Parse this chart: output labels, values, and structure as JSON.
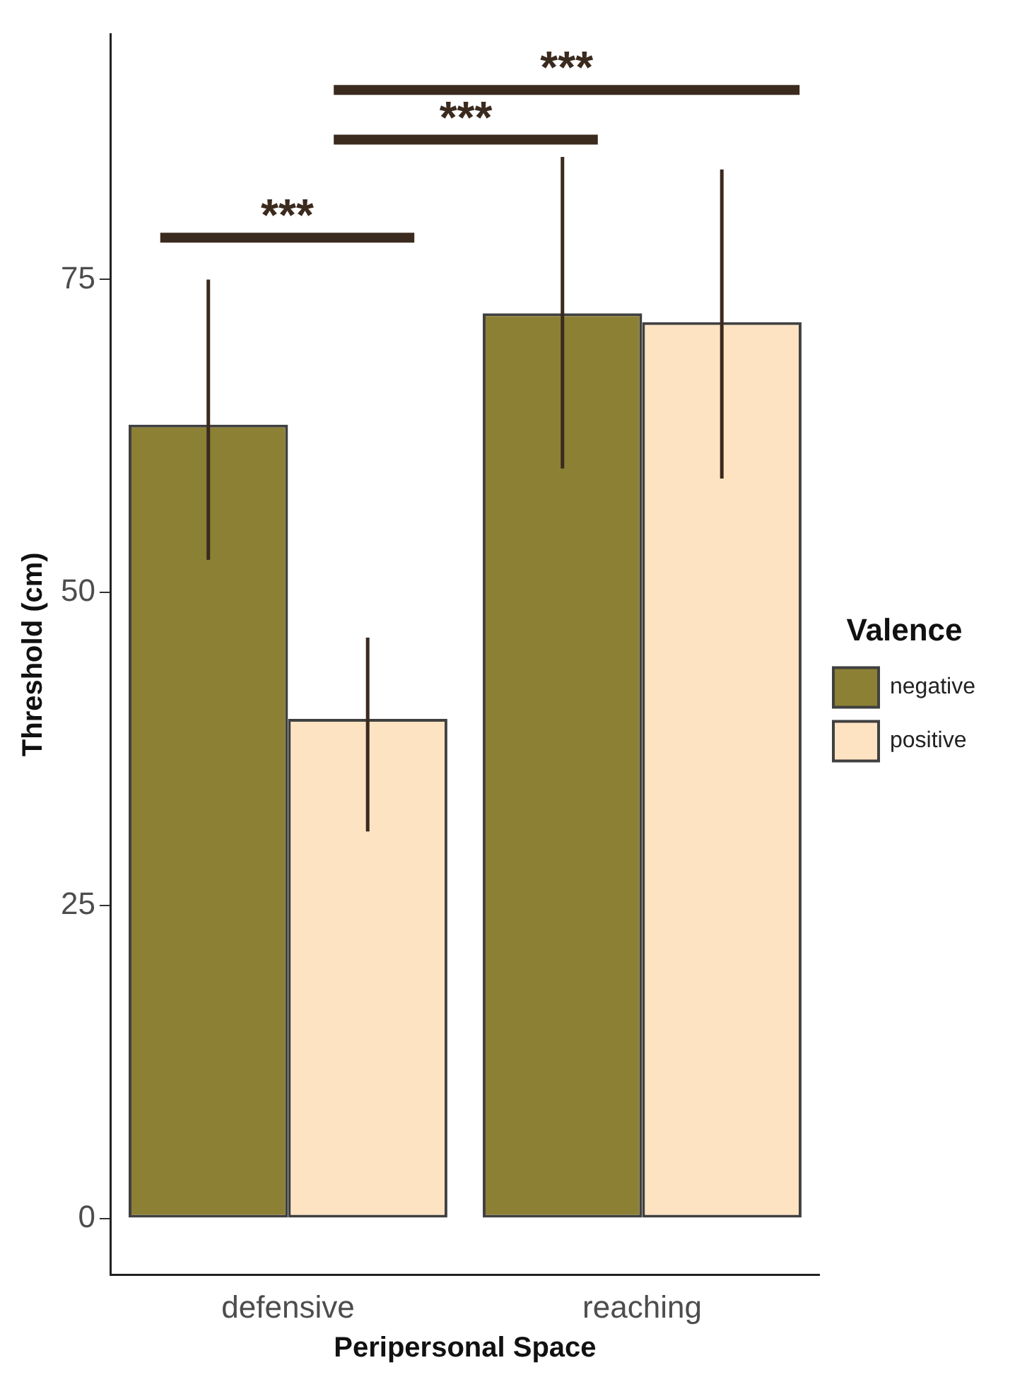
{
  "chart_data": {
    "type": "bar",
    "xlabel": "Peripersonal Space",
    "ylabel": "Threshold (cm)",
    "legend_title": "Valence",
    "categories": [
      "defensive",
      "reaching"
    ],
    "series": [
      {
        "name": "negative",
        "color": "#8c8035",
        "values": [
          63.4,
          72.3
        ],
        "errors": [
          [
            52.6,
            75.0
          ],
          [
            59.9,
            84.8
          ]
        ]
      },
      {
        "name": "positive",
        "color": "#fde3c2",
        "values": [
          39.9,
          71.6
        ],
        "errors": [
          [
            30.9,
            46.4
          ],
          [
            59.1,
            83.8
          ]
        ]
      }
    ],
    "ylim": [
      -4.5,
      94.6
    ],
    "yticks": [
      0,
      25,
      50,
      75
    ],
    "grid": false,
    "legend": "right",
    "annotations": [
      "***",
      "***",
      "***"
    ]
  }
}
